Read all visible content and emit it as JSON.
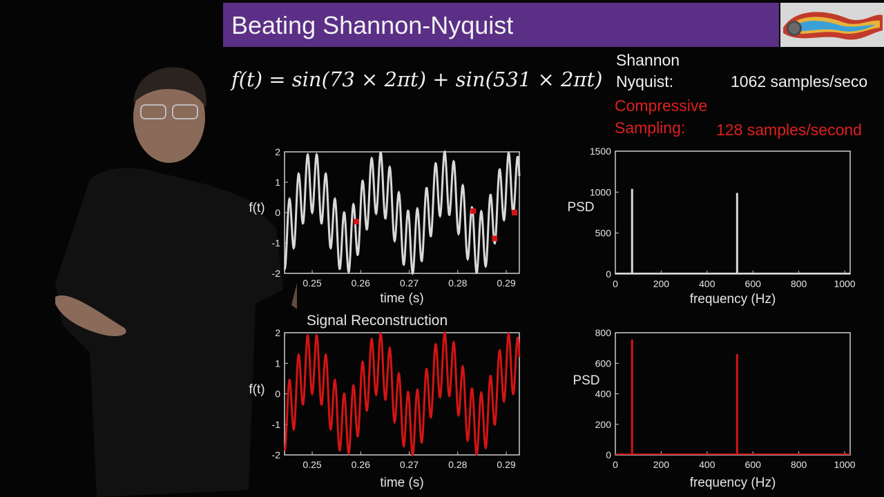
{
  "slide": {
    "title": "Beating Shannon-Nyquist",
    "formula": "f(t) = sin(73 × 2πt) + sin(531 × 2πt)",
    "info": {
      "shannon_line1": "Shannon",
      "shannon_line2": "Nyquist:",
      "shannon_rate": "1062 samples/seco",
      "compressive_line1": "Compressive",
      "compressive_line2": "Sampling:",
      "compressive_rate": "128 samples/second"
    }
  },
  "colors": {
    "title_bar": "#5b2f86",
    "signal": "#d9d9d9",
    "reconstruction": "#d41414",
    "samples": "#d41414"
  },
  "chart_data": [
    {
      "id": "signal",
      "type": "line",
      "title": "",
      "xlabel": "time (s)",
      "ylabel": "f(t)",
      "xlim": [
        0.2443,
        0.2927
      ],
      "ylim": [
        -2,
        2
      ],
      "xticks": [
        "0.25",
        "0.26",
        "0.27",
        "0.28",
        "0.29"
      ],
      "yticks": [
        "2",
        "1",
        "0",
        "-1",
        "-2"
      ],
      "function": "sin(73*2*pi*t) + sin(531*2*pi*t)",
      "color": "#d9d9d9",
      "samples": {
        "x": [
          0.2591,
          0.2832,
          0.2876,
          0.2917
        ],
        "y": [
          -0.3,
          0.05,
          -0.85,
          0.0
        ]
      }
    },
    {
      "id": "signal-psd",
      "type": "bar",
      "title": "",
      "xlabel": "frequency (Hz)",
      "ylabel": "PSD",
      "xlim": [
        0,
        1024
      ],
      "ylim": [
        0,
        1500
      ],
      "xticks": [
        "0",
        "200",
        "400",
        "600",
        "800",
        "1000"
      ],
      "yticks": [
        "1500",
        "1000",
        "500",
        "0"
      ],
      "x": [
        73,
        531
      ],
      "values": [
        1040,
        990
      ],
      "color": "#d9d9d9"
    },
    {
      "id": "reconstruction",
      "type": "line",
      "title": "Signal Reconstruction",
      "xlabel": "time (s)",
      "ylabel": "f(t)",
      "xlim": [
        0.2443,
        0.2927
      ],
      "ylim": [
        -2,
        2
      ],
      "xticks": [
        "0.25",
        "0.26",
        "0.27",
        "0.28",
        "0.29"
      ],
      "yticks": [
        "2",
        "1",
        "0",
        "-1",
        "-2"
      ],
      "function": "sin(73*2*pi*t) + sin(531*2*pi*t)",
      "color": "#d41414"
    },
    {
      "id": "reconstruction-psd",
      "type": "bar",
      "title": "",
      "xlabel": "frequency (Hz)",
      "ylabel": "PSD",
      "xlim": [
        0,
        1024
      ],
      "ylim": [
        0,
        800
      ],
      "xticks": [
        "0",
        "200",
        "400",
        "600",
        "800",
        "1000"
      ],
      "yticks": [
        "800",
        "600",
        "400",
        "200",
        "0"
      ],
      "x": [
        73,
        531
      ],
      "values": [
        755,
        660
      ],
      "color": "#d41414"
    }
  ]
}
